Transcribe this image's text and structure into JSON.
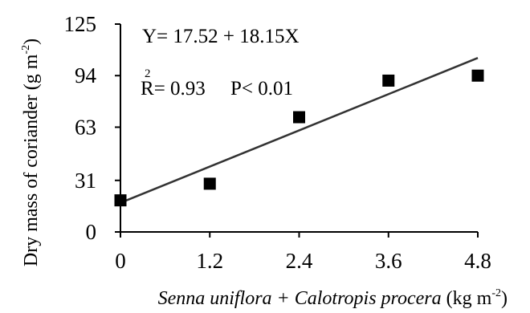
{
  "chart_data": {
    "type": "scatter",
    "title": "",
    "equation": "Y= 17.52 + 18.15X",
    "r_label": "R",
    "r_superscript": "2",
    "r_value": "= 0.93",
    "p_value": "P< 0.01",
    "ylabel_text": "Dry mass of coriander  (g m",
    "ylabel_exp": "-2",
    "ylabel_close": ")",
    "xlabel_text": "Senna uniflora + Calotropis procera",
    "xlabel_unit": " (kg m",
    "xlabel_exp": "-2",
    "xlabel_close": ")",
    "xticks": [
      0,
      1.2,
      2.4,
      3.6,
      4.8
    ],
    "xtick_labels": [
      "0",
      "1.2",
      "2.4",
      "3.6",
      "4.8"
    ],
    "yticks": [
      0,
      31,
      63,
      94,
      125
    ],
    "ytick_labels": [
      "0",
      "31",
      "63",
      "94",
      "125"
    ],
    "xlim": [
      0,
      4.8
    ],
    "ylim": [
      0,
      125
    ],
    "grid": false,
    "points": [
      {
        "x": 0,
        "y": 19
      },
      {
        "x": 1.2,
        "y": 29
      },
      {
        "x": 2.4,
        "y": 69
      },
      {
        "x": 3.6,
        "y": 91
      },
      {
        "x": 4.8,
        "y": 94
      }
    ],
    "fit": {
      "intercept": 17.52,
      "slope": 18.15
    }
  }
}
